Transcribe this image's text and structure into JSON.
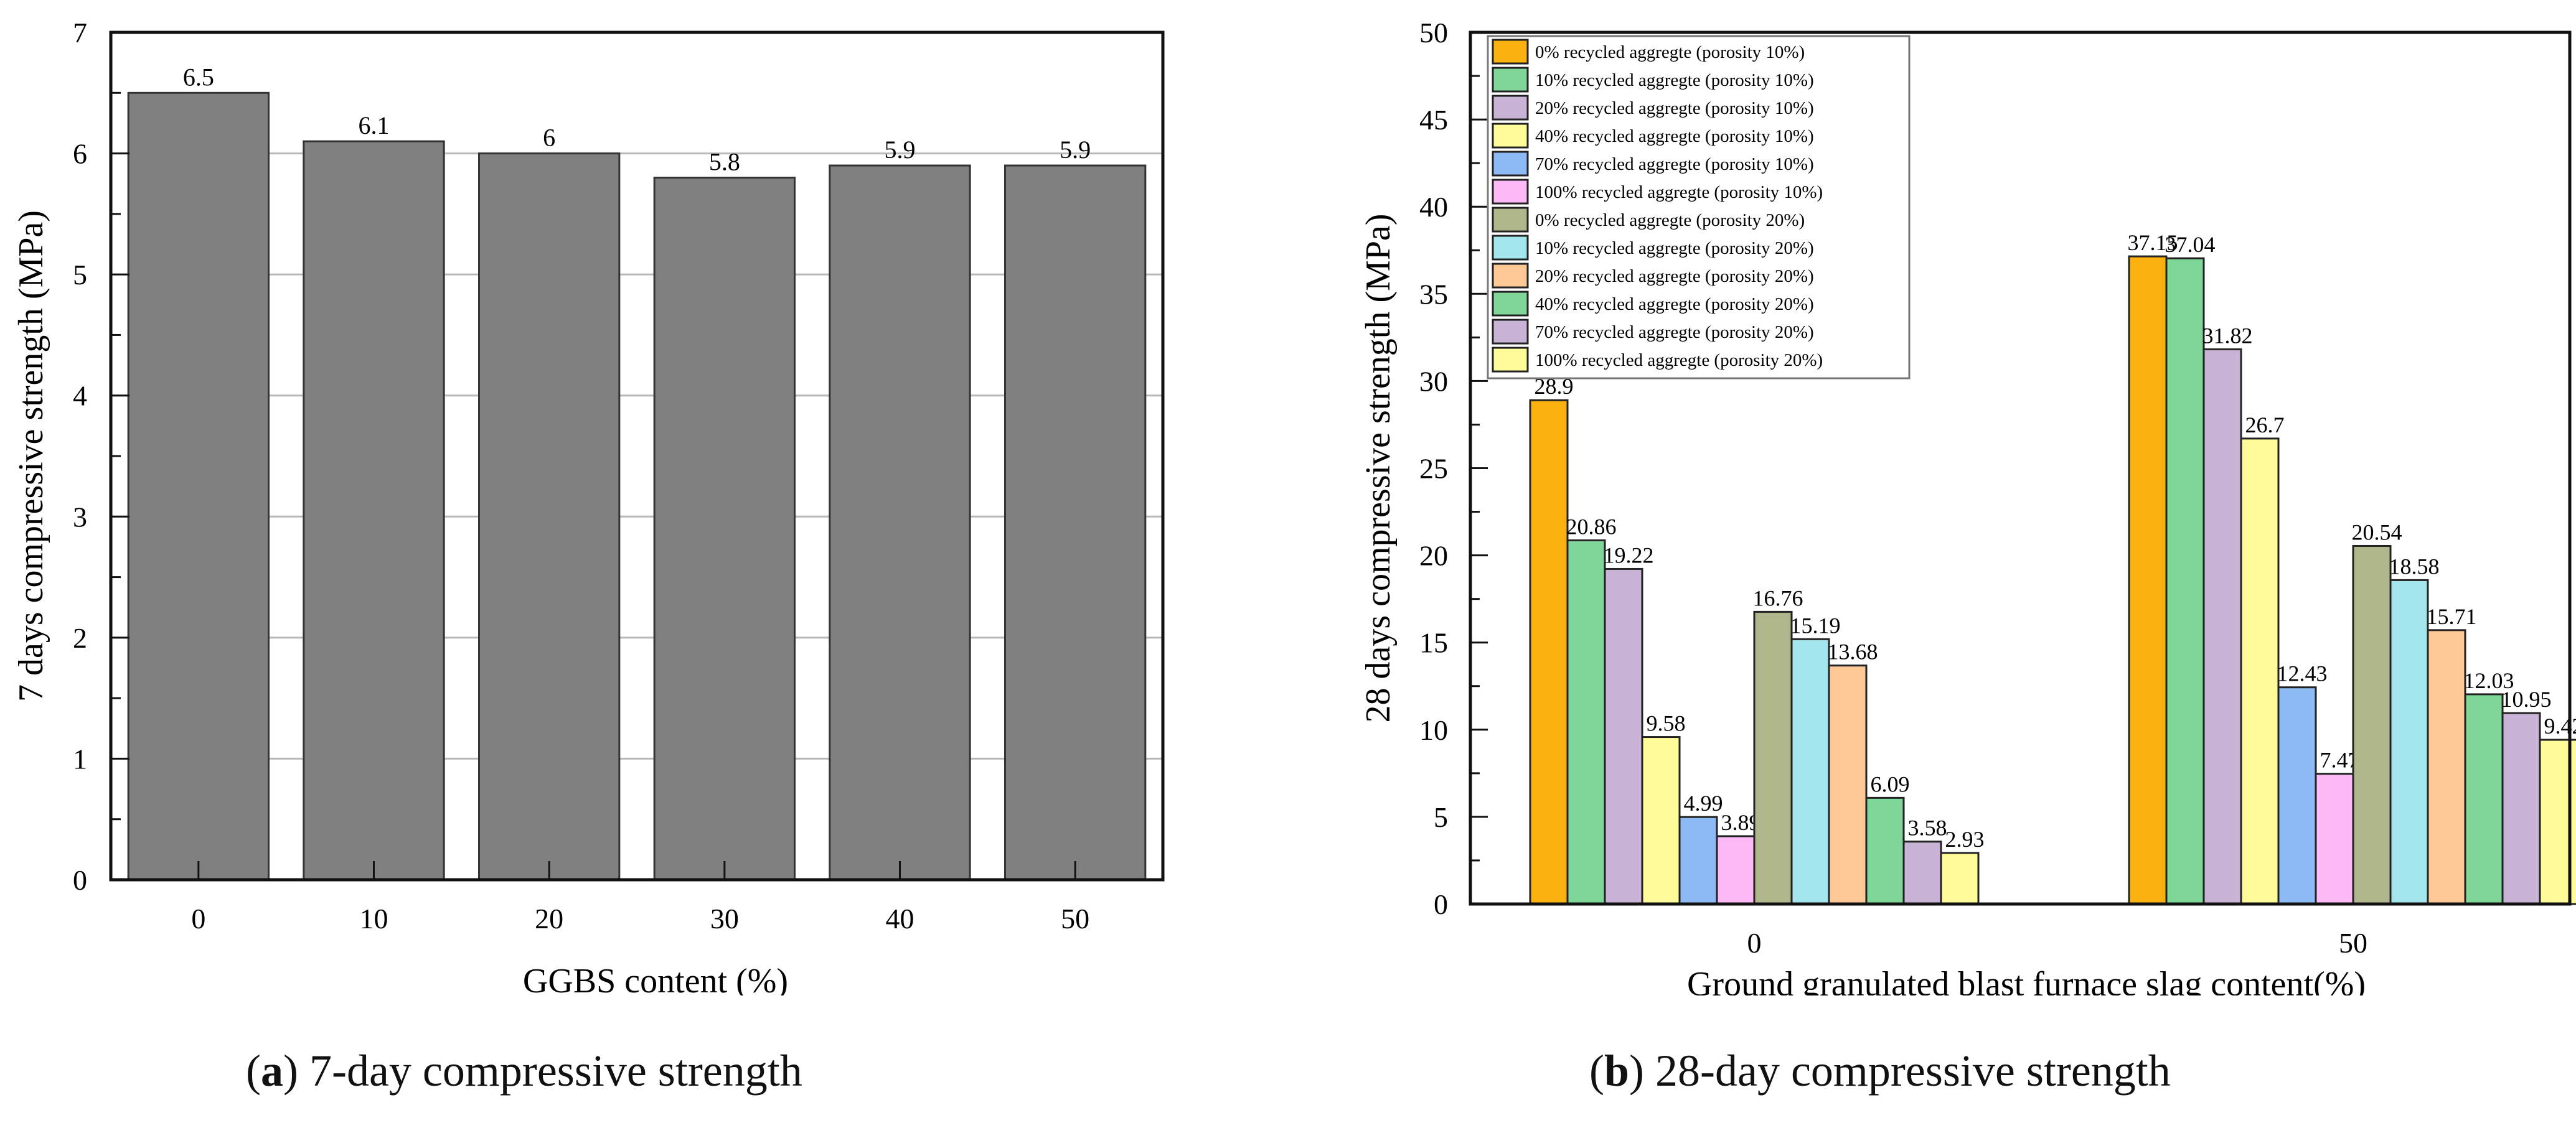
{
  "chart_data": [
    {
      "id": "a",
      "type": "bar",
      "title": "",
      "caption_letter": "a",
      "caption_text": " 7-day compressive strength",
      "xlabel": "GGBS content (%)",
      "ylabel": "7 days compressive strength (MPa)",
      "categories": [
        "0",
        "10",
        "20",
        "30",
        "40",
        "50"
      ],
      "values": [
        6.5,
        6.1,
        6,
        5.8,
        5.9,
        5.9
      ],
      "data_labels": [
        "6.5",
        "6.1",
        "6",
        "5.8",
        "5.9",
        "5.9"
      ],
      "ylim": [
        0,
        7
      ],
      "yticks": [
        "0",
        "1",
        "2",
        "3",
        "4",
        "5",
        "6",
        "7"
      ],
      "grid": true,
      "bar_color": "#808080"
    },
    {
      "id": "b",
      "type": "bar",
      "title": "",
      "caption_letter": "b",
      "caption_text": " 28-day compressive strength",
      "xlabel": "Ground granulated blast furnace slag content(%)",
      "ylabel": "28 days compressive strength (MPa)",
      "categories": [
        "0",
        "50"
      ],
      "ylim": [
        0,
        50
      ],
      "yticks": [
        "0",
        "5",
        "10",
        "15",
        "20",
        "25",
        "30",
        "35",
        "40",
        "45",
        "50"
      ],
      "grid": false,
      "legend_position": "top-left",
      "series": [
        {
          "name": "0% recycled aggregte (porosity 10%)",
          "color": "#F8B10F",
          "values": [
            28.9,
            37.15
          ],
          "labels": [
            "28.9",
            "37.15"
          ]
        },
        {
          "name": "10% recycled aggregte (porosity 10%)",
          "color": "#7ED698",
          "values": [
            20.86,
            37.04
          ],
          "labels": [
            "20.86",
            "37.04"
          ]
        },
        {
          "name": "20% recycled aggregte (porosity 10%)",
          "color": "#C8B2D6",
          "values": [
            19.22,
            31.82
          ],
          "labels": [
            "19.22",
            "31.82"
          ]
        },
        {
          "name": "40% recycled aggregte (porosity 10%)",
          "color": "#FFFB99",
          "values": [
            9.58,
            26.7
          ],
          "labels": [
            "9.58",
            "26.7"
          ]
        },
        {
          "name": "70% recycled aggregte (porosity 10%)",
          "color": "#8CBAF4",
          "values": [
            4.99,
            12.43
          ],
          "labels": [
            "4.99",
            "12.43"
          ]
        },
        {
          "name": "100% recycled aggregte (porosity 10%)",
          "color": "#FDB8F6",
          "values": [
            3.89,
            7.47
          ],
          "labels": [
            "3.89",
            "7.47"
          ]
        },
        {
          "name": "0% recycled aggregte (porosity 20%)",
          "color": "#B0B68C",
          "values": [
            16.76,
            20.54
          ],
          "labels": [
            "16.76",
            "20.54"
          ]
        },
        {
          "name": "10% recycled aggregte (porosity 20%)",
          "color": "#A2E5EC",
          "values": [
            15.19,
            18.58
          ],
          "labels": [
            "15.19",
            "18.58"
          ]
        },
        {
          "name": "20% recycled aggregte (porosity 20%)",
          "color": "#FEC896",
          "values": [
            13.68,
            15.71
          ],
          "labels": [
            "13.68",
            "15.71"
          ]
        },
        {
          "name": "40% recycled aggregte (porosity 20%)",
          "color": "#7ED698",
          "values": [
            6.09,
            12.03
          ],
          "labels": [
            "6.09",
            "12.03"
          ]
        },
        {
          "name": "70% recycled aggregte (porosity 20%)",
          "color": "#C8B2D6",
          "values": [
            3.58,
            10.95
          ],
          "labels": [
            "3.58",
            "10.95"
          ]
        },
        {
          "name": "100% recycled aggregte (porosity 20%)",
          "color": "#FFFB99",
          "values": [
            2.93,
            9.42
          ],
          "labels": [
            "2.93",
            "9.42"
          ]
        }
      ]
    }
  ]
}
